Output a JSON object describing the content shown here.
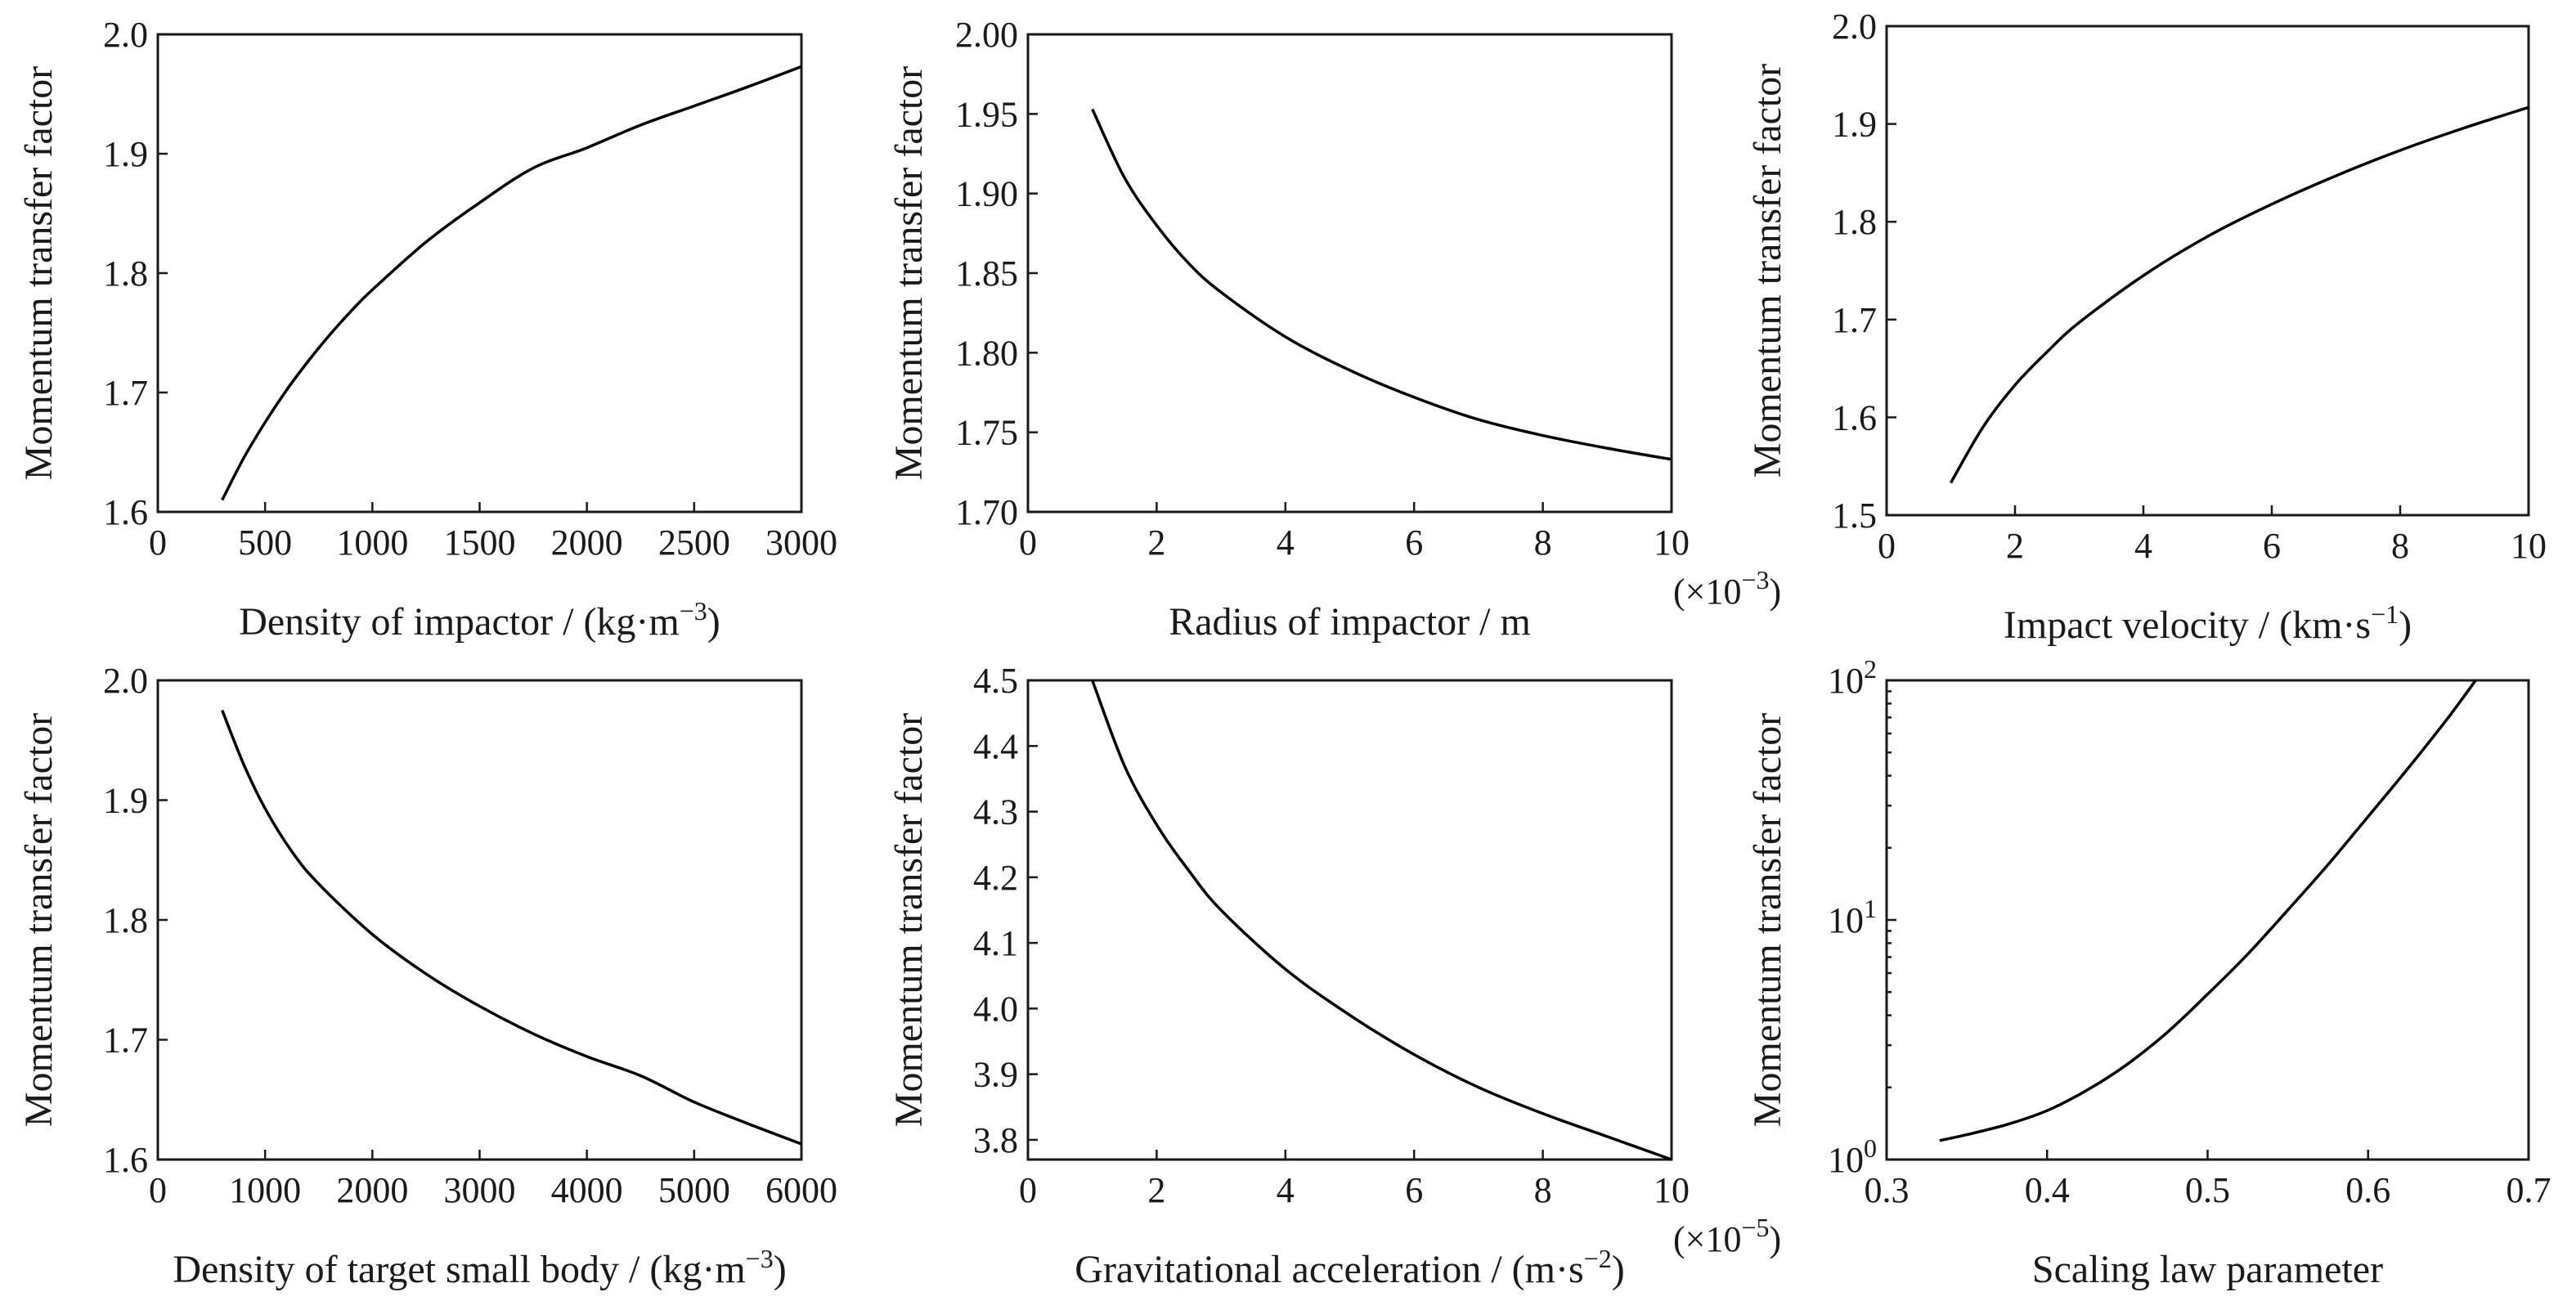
{
  "chart_data": [
    {
      "type": "line",
      "xlabel": "Density of impactor / (kg·m",
      "xlabel_sup": "−3",
      "xlabel_end": ")",
      "ylabel": "Momentum transfer factor",
      "xlim": [
        0,
        3000
      ],
      "ylim": [
        1.6,
        2.0
      ],
      "xticks": [
        0,
        500,
        1000,
        1500,
        2000,
        2500,
        3000
      ],
      "xtick_labels": [
        "0",
        "500",
        "1000",
        "1500",
        "2000",
        "2500",
        "3000"
      ],
      "yticks": [
        1.6,
        1.7,
        1.8,
        1.9,
        2.0
      ],
      "ytick_labels": [
        "1.6",
        "1.7",
        "1.8",
        "1.9",
        "2.0"
      ],
      "series": [
        {
          "x": [
            300,
            400,
            500,
            600,
            700,
            800,
            900,
            1000,
            1250,
            1500,
            1750,
            2000,
            2250,
            2500,
            2750,
            3000
          ],
          "y": [
            1.61,
            1.645,
            1.675,
            1.702,
            1.726,
            1.748,
            1.768,
            1.786,
            1.826,
            1.859,
            1.888,
            1.905,
            1.924,
            1.94,
            1.956,
            1.973
          ]
        }
      ]
    },
    {
      "type": "line",
      "xlabel": "Radius of impactor / m",
      "ylabel": "Momentum transfer factor",
      "xlim": [
        0,
        10
      ],
      "ylim": [
        1.7,
        2.0
      ],
      "xticks": [
        0,
        2,
        4,
        6,
        8,
        10
      ],
      "xtick_labels": [
        "0",
        "2",
        "4",
        "6",
        "8",
        "10"
      ],
      "yticks": [
        1.7,
        1.75,
        1.8,
        1.85,
        1.9,
        1.95,
        2.0
      ],
      "ytick_labels": [
        "1.70",
        "1.75",
        "1.80",
        "1.85",
        "1.90",
        "1.95",
        "2.00"
      ],
      "x_multiplier": "(×10",
      "x_multiplier_exp": "−3",
      "x_multiplier_end": ")",
      "series": [
        {
          "x": [
            1,
            1.5,
            2,
            2.5,
            3,
            4,
            5,
            6,
            7,
            8,
            9,
            10
          ],
          "y": [
            1.953,
            1.91,
            1.88,
            1.856,
            1.838,
            1.81,
            1.789,
            1.772,
            1.758,
            1.748,
            1.74,
            1.733
          ]
        }
      ]
    },
    {
      "type": "line",
      "xlabel": "Impact velocity / (km·s",
      "xlabel_sup": "−1",
      "xlabel_end": ")",
      "ylabel": "Momentum transfer factor",
      "xlim": [
        0,
        10
      ],
      "ylim": [
        1.5,
        2.0
      ],
      "xticks": [
        0,
        2,
        4,
        6,
        8,
        10
      ],
      "xtick_labels": [
        "0",
        "2",
        "4",
        "6",
        "8",
        "10"
      ],
      "yticks": [
        1.5,
        1.6,
        1.7,
        1.8,
        1.9,
        2.0
      ],
      "ytick_labels": [
        "1.5",
        "1.6",
        "1.7",
        "1.8",
        "1.9",
        "2.0"
      ],
      "series": [
        {
          "x": [
            1,
            1.5,
            2,
            2.5,
            3,
            4,
            5,
            6,
            7,
            8,
            9,
            10
          ],
          "y": [
            1.533,
            1.59,
            1.633,
            1.667,
            1.697,
            1.745,
            1.785,
            1.818,
            1.847,
            1.873,
            1.896,
            1.917
          ]
        }
      ]
    },
    {
      "type": "line",
      "xlabel": "Density of target small body / (kg·m",
      "xlabel_sup": "−3",
      "xlabel_end": ")",
      "ylabel": "Momentum transfer factor",
      "xlim": [
        0,
        6000
      ],
      "ylim": [
        1.6,
        2.0
      ],
      "xticks": [
        0,
        1000,
        2000,
        3000,
        4000,
        5000,
        6000
      ],
      "xtick_labels": [
        "0",
        "1000",
        "2000",
        "3000",
        "4000",
        "5000",
        "6000"
      ],
      "yticks": [
        1.6,
        1.7,
        1.8,
        1.9,
        2.0
      ],
      "ytick_labels": [
        "1.6",
        "1.7",
        "1.8",
        "1.9",
        "2.0"
      ],
      "series": [
        {
          "x": [
            600,
            800,
            1000,
            1250,
            1500,
            2000,
            2500,
            3000,
            3500,
            4000,
            4500,
            5000,
            5500,
            6000
          ],
          "y": [
            1.975,
            1.93,
            1.893,
            1.857,
            1.83,
            1.788,
            1.755,
            1.728,
            1.705,
            1.686,
            1.67,
            1.648,
            1.63,
            1.613
          ]
        }
      ]
    },
    {
      "type": "line",
      "xlabel": "Gravitational acceleration / (m·s",
      "xlabel_sup": "−2",
      "xlabel_end": ")",
      "ylabel": "Momentum transfer factor",
      "xlim": [
        0,
        10
      ],
      "ylim": [
        3.77,
        4.5
      ],
      "xticks": [
        0,
        2,
        4,
        6,
        8,
        10
      ],
      "xtick_labels": [
        "0",
        "2",
        "4",
        "6",
        "8",
        "10"
      ],
      "yticks": [
        3.8,
        3.9,
        4.0,
        4.1,
        4.2,
        4.3,
        4.4,
        4.5
      ],
      "ytick_labels": [
        "3.8",
        "3.9",
        "4.0",
        "4.1",
        "4.2",
        "4.3",
        "4.4",
        "4.5"
      ],
      "x_multiplier": "(×10",
      "x_multiplier_exp": "−5",
      "x_multiplier_end": ")",
      "series": [
        {
          "x": [
            1,
            1.5,
            2,
            2.5,
            3,
            4,
            5,
            6,
            7,
            8,
            9,
            10
          ],
          "y": [
            4.5,
            4.37,
            4.28,
            4.21,
            4.15,
            4.06,
            3.99,
            3.93,
            3.88,
            3.84,
            3.805,
            3.77
          ]
        }
      ]
    },
    {
      "type": "line",
      "xlabel": "Scaling law parameter",
      "ylabel": "Momentum transfer factor",
      "y_scale": "log",
      "xlim": [
        0.3,
        0.7
      ],
      "ylim": [
        1,
        100
      ],
      "xticks": [
        0.3,
        0.4,
        0.5,
        0.6,
        0.7
      ],
      "xtick_labels": [
        "0.3",
        "0.4",
        "0.5",
        "0.6",
        "0.7"
      ],
      "yticks": [
        1,
        10,
        100
      ],
      "ytick_labels": [
        {
          "base": "10",
          "exp": "0"
        },
        {
          "base": "10",
          "exp": "1"
        },
        {
          "base": "10",
          "exp": "2"
        }
      ],
      "series": [
        {
          "x": [
            0.333,
            0.35,
            0.375,
            0.4,
            0.425,
            0.45,
            0.475,
            0.5,
            0.525,
            0.55,
            0.575,
            0.6,
            0.625,
            0.65,
            0.667
          ],
          "y": [
            1.2,
            1.27,
            1.4,
            1.6,
            1.95,
            2.5,
            3.4,
            4.9,
            7.2,
            11,
            17,
            27,
            43,
            70,
            100
          ]
        }
      ]
    }
  ]
}
